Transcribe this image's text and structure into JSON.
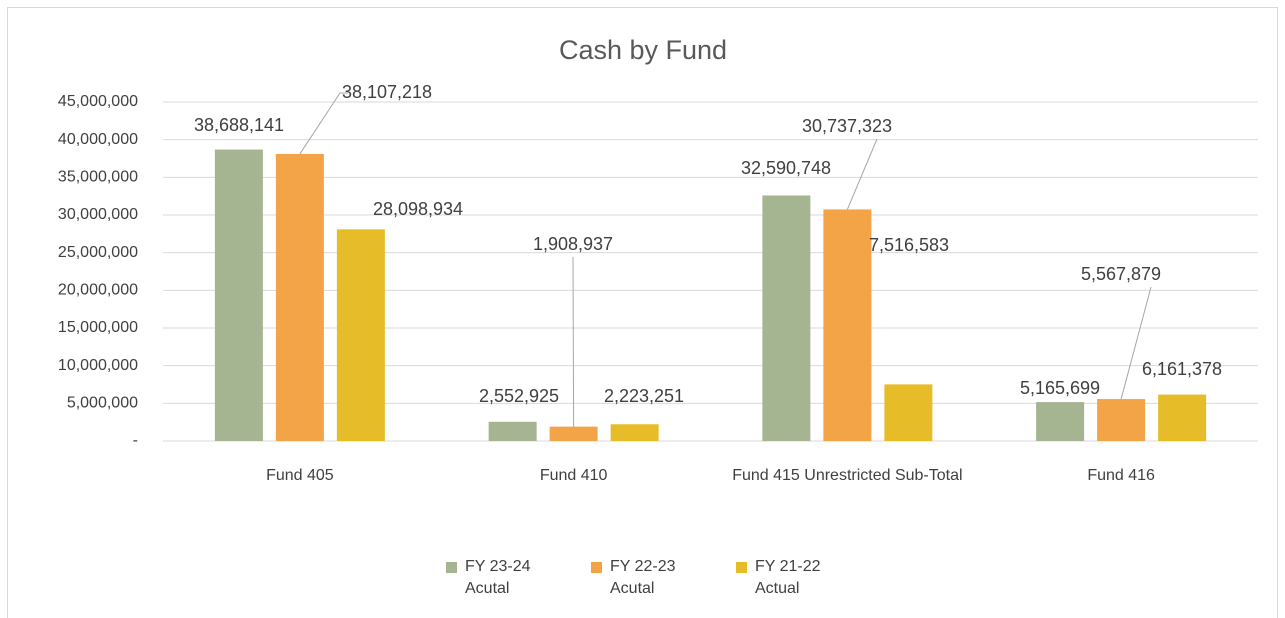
{
  "chart_data": {
    "type": "bar",
    "title": "Cash by Fund",
    "categories": [
      "Fund 405",
      "Fund 410",
      "Fund 415 Unrestricted Sub-Total",
      "Fund 416"
    ],
    "series": [
      {
        "name": "FY 23-24 Acutal",
        "color": "#a5b592",
        "values": [
          38688141,
          2552925,
          32590748,
          5165699
        ],
        "value_labels": [
          "38,688,141",
          "2,552,925",
          "32,590,748",
          "5,165,699"
        ]
      },
      {
        "name": "FY 22-23 Acutal",
        "color": "#f3a447",
        "values": [
          38107218,
          1908937,
          30737323,
          5567879
        ],
        "value_labels": [
          "38,107,218",
          "1,908,937",
          "30,737,323",
          "5,567,879"
        ]
      },
      {
        "name": "FY 21-22 Actual",
        "color": "#e7bc29",
        "values": [
          28098934,
          2223251,
          7516583,
          6161378
        ],
        "value_labels": [
          "28,098,934",
          "2,223,251",
          "7,516,583",
          "6,161,378"
        ]
      }
    ],
    "ylim": [
      0,
      45000000
    ],
    "yticks": [
      {
        "value": 0,
        "label": "-"
      },
      {
        "value": 5000000,
        "label": "5,000,000"
      },
      {
        "value": 10000000,
        "label": "10,000,000"
      },
      {
        "value": 15000000,
        "label": "15,000,000"
      },
      {
        "value": 20000000,
        "label": "20,000,000"
      },
      {
        "value": 25000000,
        "label": "25,000,000"
      },
      {
        "value": 30000000,
        "label": "30,000,000"
      },
      {
        "value": 35000000,
        "label": "35,000,000"
      },
      {
        "value": 40000000,
        "label": "40,000,000"
      },
      {
        "value": 45000000,
        "label": "45,000,000"
      }
    ],
    "grid": true,
    "legend": "bottom"
  }
}
